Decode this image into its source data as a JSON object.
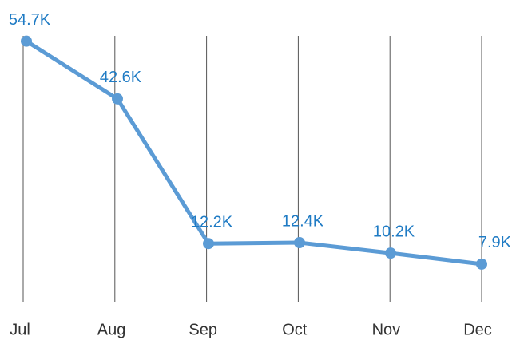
{
  "chart_data": {
    "type": "line",
    "categories": [
      "Jul",
      "Aug",
      "Sep",
      "Oct",
      "Nov",
      "Dec"
    ],
    "series": [
      {
        "color": "#5b9bd5",
        "values": [
          54700,
          42600,
          12200,
          12400,
          10200,
          7900
        ],
        "value_labels": [
          "54.7K",
          "42.6K",
          "12.2K",
          "12.4K",
          "10.2K",
          "7.9K"
        ]
      }
    ],
    "ylim": [
      0,
      60000
    ],
    "grid": true
  }
}
